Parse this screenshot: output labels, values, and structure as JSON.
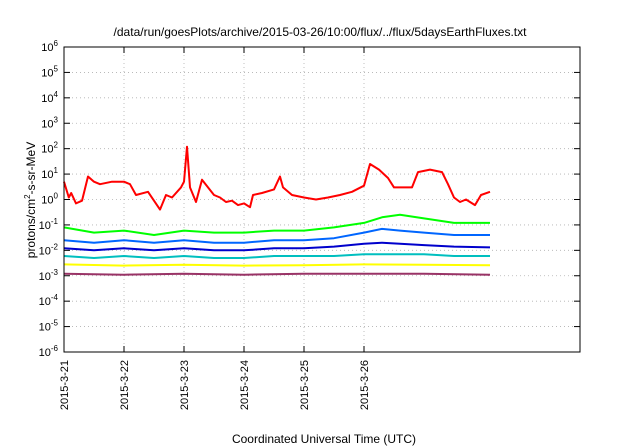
{
  "chart_data": {
    "type": "line",
    "title": "/data/run/goesPlots/archive/2015-03-26/10:00/flux/../flux/5daysEarthFluxes.txt",
    "xlabel": "Coordinated Universal Time (UTC)",
    "ylabel": "protons/cm²-s-sr-MeV",
    "ylabel_parts": {
      "pre": "protons/cm",
      "sup": "2",
      "post": "-s-sr-MeV"
    },
    "y_scale": "log",
    "ylim_exponents": [
      -6,
      6
    ],
    "y_tick_base": "10",
    "y_tick_exponents": [
      "-6",
      "-5",
      "-4",
      "-3",
      "-2",
      "-1",
      "0",
      "1",
      "2",
      "3",
      "4",
      "5",
      "6"
    ],
    "x_range_days": [
      0,
      5.5
    ],
    "x_tick_labels": [
      "2015-3-21",
      "2015-3-22",
      "2015-3-23",
      "2015-3-24",
      "2015-3-25",
      "2015-3-26"
    ],
    "grid": true,
    "legend": "none",
    "series": [
      {
        "color": "#ff0000",
        "points": [
          [
            0,
            5
          ],
          [
            0.08,
            1.2
          ],
          [
            0.12,
            1.8
          ],
          [
            0.2,
            0.7
          ],
          [
            0.3,
            0.9
          ],
          [
            0.4,
            8
          ],
          [
            0.5,
            5
          ],
          [
            0.6,
            4
          ],
          [
            0.8,
            5
          ],
          [
            1.0,
            5
          ],
          [
            1.1,
            4
          ],
          [
            1.2,
            1.5
          ],
          [
            1.4,
            2
          ],
          [
            1.6,
            0.4
          ],
          [
            1.7,
            1.5
          ],
          [
            1.8,
            1.2
          ],
          [
            1.95,
            3
          ],
          [
            2.0,
            5
          ],
          [
            2.05,
            120
          ],
          [
            2.1,
            3
          ],
          [
            2.2,
            0.8
          ],
          [
            2.3,
            6
          ],
          [
            2.4,
            3
          ],
          [
            2.5,
            1.5
          ],
          [
            2.6,
            1.2
          ],
          [
            2.7,
            0.8
          ],
          [
            2.8,
            0.9
          ],
          [
            2.9,
            0.6
          ],
          [
            3.0,
            0.7
          ],
          [
            3.1,
            0.5
          ],
          [
            3.15,
            1.5
          ],
          [
            3.3,
            1.8
          ],
          [
            3.5,
            2.5
          ],
          [
            3.6,
            8
          ],
          [
            3.65,
            3
          ],
          [
            3.8,
            1.5
          ],
          [
            4.0,
            1.2
          ],
          [
            4.2,
            1.0
          ],
          [
            4.4,
            1.2
          ],
          [
            4.6,
            1.5
          ],
          [
            4.8,
            2
          ],
          [
            5.0,
            3.5
          ],
          [
            5.1,
            25
          ],
          [
            5.25,
            15
          ],
          [
            5.4,
            7
          ],
          [
            5.5,
            3
          ],
          [
            5.6,
            3
          ],
          [
            5.8,
            3
          ],
          [
            5.9,
            12
          ],
          [
            6.1,
            15
          ],
          [
            6.3,
            12
          ],
          [
            6.4,
            4
          ],
          [
            6.5,
            1.2
          ],
          [
            6.6,
            0.8
          ],
          [
            6.7,
            1.0
          ],
          [
            6.85,
            0.6
          ],
          [
            6.95,
            1.5
          ],
          [
            7.1,
            2
          ]
        ]
      },
      {
        "color": "#00ff00",
        "points": [
          [
            0,
            0.08
          ],
          [
            0.5,
            0.05
          ],
          [
            1.0,
            0.06
          ],
          [
            1.5,
            0.04
          ],
          [
            2.0,
            0.06
          ],
          [
            2.5,
            0.05
          ],
          [
            3.0,
            0.05
          ],
          [
            3.5,
            0.06
          ],
          [
            4.0,
            0.06
          ],
          [
            4.5,
            0.08
          ],
          [
            5.0,
            0.12
          ],
          [
            5.3,
            0.2
          ],
          [
            5.6,
            0.25
          ],
          [
            6.0,
            0.18
          ],
          [
            6.5,
            0.12
          ],
          [
            7.1,
            0.12
          ]
        ]
      },
      {
        "color": "#0066ff",
        "points": [
          [
            0,
            0.025
          ],
          [
            0.5,
            0.02
          ],
          [
            1.0,
            0.025
          ],
          [
            1.5,
            0.02
          ],
          [
            2.0,
            0.025
          ],
          [
            2.5,
            0.02
          ],
          [
            3.0,
            0.02
          ],
          [
            3.5,
            0.025
          ],
          [
            4.0,
            0.025
          ],
          [
            4.5,
            0.03
          ],
          [
            5.0,
            0.05
          ],
          [
            5.3,
            0.07
          ],
          [
            5.6,
            0.06
          ],
          [
            6.0,
            0.05
          ],
          [
            6.5,
            0.04
          ],
          [
            7.1,
            0.04
          ]
        ]
      },
      {
        "color": "#0000cc",
        "points": [
          [
            0,
            0.012
          ],
          [
            0.5,
            0.01
          ],
          [
            1.0,
            0.012
          ],
          [
            1.5,
            0.01
          ],
          [
            2.0,
            0.012
          ],
          [
            2.5,
            0.01
          ],
          [
            3.0,
            0.01
          ],
          [
            3.5,
            0.012
          ],
          [
            4.0,
            0.012
          ],
          [
            4.5,
            0.014
          ],
          [
            5.0,
            0.018
          ],
          [
            5.3,
            0.02
          ],
          [
            5.6,
            0.018
          ],
          [
            6.0,
            0.016
          ],
          [
            6.5,
            0.014
          ],
          [
            7.1,
            0.013
          ]
        ]
      },
      {
        "color": "#00bfbf",
        "points": [
          [
            0,
            0.006
          ],
          [
            0.5,
            0.005
          ],
          [
            1.0,
            0.006
          ],
          [
            1.5,
            0.005
          ],
          [
            2.0,
            0.006
          ],
          [
            2.5,
            0.005
          ],
          [
            3.0,
            0.005
          ],
          [
            3.5,
            0.006
          ],
          [
            4.0,
            0.006
          ],
          [
            4.5,
            0.006
          ],
          [
            5.0,
            0.007
          ],
          [
            5.5,
            0.007
          ],
          [
            6.0,
            0.007
          ],
          [
            6.5,
            0.006
          ],
          [
            7.1,
            0.006
          ]
        ]
      },
      {
        "color": "#ffff00",
        "points": [
          [
            0,
            0.0028
          ],
          [
            1.0,
            0.0025
          ],
          [
            2.0,
            0.0027
          ],
          [
            3.0,
            0.0025
          ],
          [
            4.0,
            0.0026
          ],
          [
            5.0,
            0.0028
          ],
          [
            6.0,
            0.0027
          ],
          [
            7.1,
            0.0026
          ]
        ]
      },
      {
        "color": "#993366",
        "points": [
          [
            0,
            0.0012
          ],
          [
            1.0,
            0.0011
          ],
          [
            2.0,
            0.0012
          ],
          [
            3.0,
            0.0011
          ],
          [
            4.0,
            0.0012
          ],
          [
            5.0,
            0.0012
          ],
          [
            6.0,
            0.0012
          ],
          [
            7.1,
            0.0011
          ]
        ]
      }
    ]
  }
}
